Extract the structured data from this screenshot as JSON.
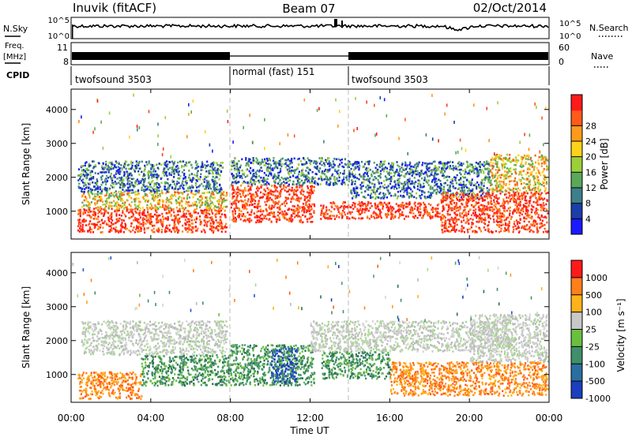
{
  "header": {
    "station": "Inuvik (fitACF)",
    "beam": "Beam 07",
    "date": "02/Oct/2014"
  },
  "top_panels": {
    "nsky_label": "N.Sky",
    "nsky_ticks": [
      "10^5",
      "10^0"
    ],
    "nsearch_label": "N.Search",
    "nsearch_ticks": [
      "10^5",
      "10^0"
    ],
    "freq_label": "Freq.",
    "freq_unit": "[MHz]",
    "freq_ticks": [
      "11",
      "8"
    ],
    "nave_label": "Nave",
    "nave_ticks": [
      "60",
      "0"
    ],
    "cpid_label": "CPID",
    "cpid_segments": [
      {
        "label": "twofsound 3503",
        "start": 0,
        "end": 8
      },
      {
        "label": "normal (fast) 151",
        "start": 8,
        "end": 14
      },
      {
        "label": "twofsound 3503",
        "start": 14,
        "end": 24
      }
    ]
  },
  "time_axis": {
    "label": "Time UT",
    "ticks": [
      "00:00",
      "04:00",
      "08:00",
      "12:00",
      "16:00",
      "20:00",
      "00:00"
    ]
  },
  "chart_data": [
    {
      "type": "heatmap",
      "ylabel": "Slant Range [km]",
      "xlabel": "",
      "xlim_hours": [
        0,
        24
      ],
      "ylim": [
        180,
        4600
      ],
      "yticks": [
        1000,
        2000,
        3000,
        4000
      ],
      "colorbar": {
        "label": "Power [dB]",
        "ticks": [
          "4",
          "8",
          "12",
          "16",
          "20",
          "24",
          "28"
        ],
        "colors": [
          "#1a1aff",
          "#1a3fa8",
          "#3d7f8a",
          "#5aa95a",
          "#9ccf3a",
          "#ffd21a",
          "#ff9a1a",
          "#ff5a1a",
          "#ff1a1a"
        ]
      },
      "scatter_bands": [
        {
          "t0": 0.3,
          "t1": 7.8,
          "r0": 400,
          "r1": 1100,
          "value": "high"
        },
        {
          "t0": 0.5,
          "t1": 7.8,
          "r0": 1100,
          "r1": 1600,
          "value": "medium"
        },
        {
          "t0": 0.3,
          "t1": 7.6,
          "r0": 1600,
          "r1": 2500,
          "value": "low"
        },
        {
          "t0": 8.0,
          "t1": 12.2,
          "r0": 700,
          "r1": 1800,
          "value": "high"
        },
        {
          "t0": 8.0,
          "t1": 14.0,
          "r0": 1800,
          "r1": 2600,
          "value": "low"
        },
        {
          "t0": 12.5,
          "t1": 18.5,
          "r0": 800,
          "r1": 1300,
          "value": "high"
        },
        {
          "t0": 14.0,
          "t1": 21.0,
          "r0": 1400,
          "r1": 2500,
          "value": "low"
        },
        {
          "t0": 18.5,
          "t1": 23.9,
          "r0": 400,
          "r1": 1600,
          "value": "high"
        },
        {
          "t0": 21.0,
          "t1": 23.9,
          "r0": 1600,
          "r1": 2700,
          "value": "medium"
        }
      ]
    },
    {
      "type": "heatmap",
      "ylabel": "Slant Range [km]",
      "xlabel": "Time UT",
      "xlim_hours": [
        0,
        24
      ],
      "ylim": [
        180,
        4600
      ],
      "yticks": [
        1000,
        2000,
        3000,
        4000
      ],
      "colorbar": {
        "label": "Velocity [m s⁻¹]",
        "ticks": [
          "1000",
          "500",
          "100",
          "25",
          "-25",
          "-100",
          "-500",
          "-1000"
        ],
        "colors": [
          "#1a3fbf",
          "#2a6fa0",
          "#3f8f6a",
          "#6abf3f",
          "#c8c8c8",
          "#ffb21a",
          "#ff7f1a",
          "#ff1a1a"
        ]
      },
      "scatter_bands": [
        {
          "t0": 0.3,
          "t1": 3.5,
          "r0": 300,
          "r1": 1100,
          "value": "orange"
        },
        {
          "t0": 3.5,
          "t1": 8.0,
          "r0": 700,
          "r1": 1600,
          "value": "green"
        },
        {
          "t0": 0.5,
          "t1": 7.8,
          "r0": 1600,
          "r1": 2600,
          "value": "grey"
        },
        {
          "t0": 8.0,
          "t1": 12.2,
          "r0": 700,
          "r1": 1900,
          "value": "green"
        },
        {
          "t0": 10.0,
          "t1": 11.3,
          "r0": 800,
          "r1": 1800,
          "value": "blue"
        },
        {
          "t0": 12.5,
          "t1": 16.0,
          "r0": 900,
          "r1": 1700,
          "value": "green"
        },
        {
          "t0": 16.0,
          "t1": 23.9,
          "r0": 400,
          "r1": 1400,
          "value": "orange"
        },
        {
          "t0": 12.0,
          "t1": 22.0,
          "r0": 1700,
          "r1": 2600,
          "value": "grey"
        },
        {
          "t0": 20.0,
          "t1": 23.9,
          "r0": 1400,
          "r1": 2800,
          "value": "grey"
        }
      ]
    }
  ]
}
